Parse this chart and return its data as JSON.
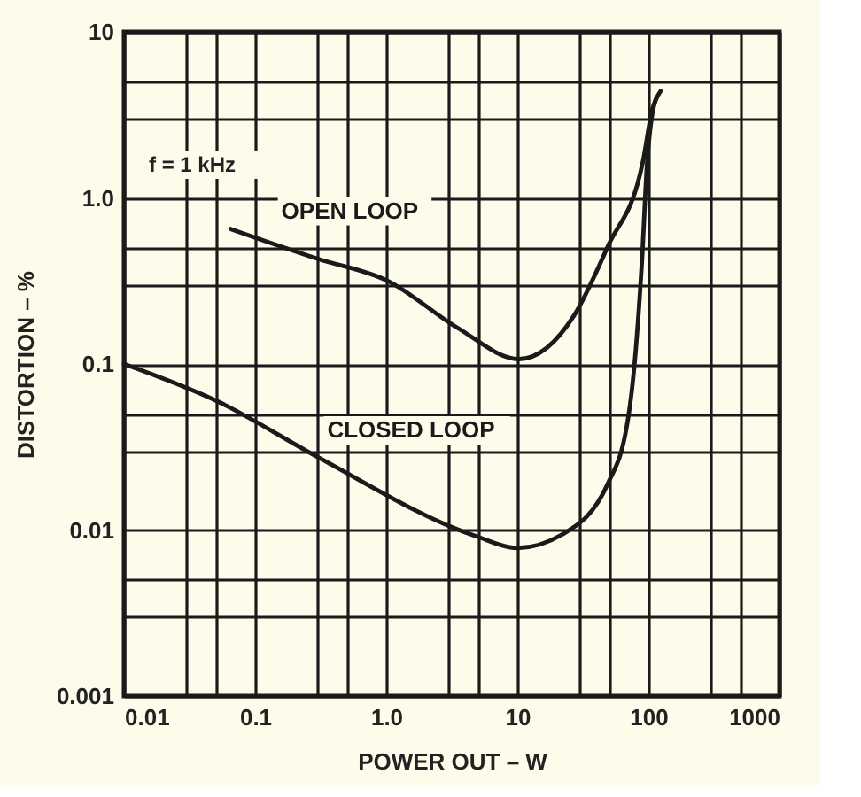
{
  "chart_data": {
    "type": "line",
    "xlabel": "POWER OUT – W",
    "ylabel": "DISTORTION – %",
    "log": "xy",
    "xlim": [
      0.01,
      1000
    ],
    "ylim": [
      0.001,
      10
    ],
    "xticks": [
      0.01,
      {
        "value": 0.03,
        "label": null
      },
      {
        "value": 0.05,
        "label": null
      },
      0.1,
      {
        "value": 0.3,
        "label": null
      },
      {
        "value": 0.5,
        "label": null
      },
      {
        "value": 1,
        "label": "1.0"
      },
      {
        "value": 3,
        "label": null
      },
      {
        "value": 5,
        "label": null
      },
      10,
      {
        "value": 30,
        "label": null
      },
      {
        "value": 50,
        "label": null
      },
      100,
      {
        "value": 300,
        "label": null
      },
      {
        "value": 500,
        "label": null
      },
      1000
    ],
    "yticks": [
      0.001,
      {
        "value": 0.003,
        "label": null
      },
      {
        "value": 0.005,
        "label": null
      },
      0.01,
      {
        "value": 0.03,
        "label": null
      },
      {
        "value": 0.05,
        "label": null
      },
      0.1,
      {
        "value": 0.3,
        "label": null
      },
      {
        "value": 0.5,
        "label": null
      },
      {
        "value": 1,
        "label": "1.0"
      },
      {
        "value": 3,
        "label": null
      },
      {
        "value": 5,
        "label": null
      },
      10
    ],
    "grid": true,
    "marker": "none",
    "line_style": "solid",
    "annotations": [
      "f = 1 kHz"
    ],
    "series": [
      {
        "name": "OPEN LOOP",
        "color": "#1a1a1a",
        "x": [
          0.065,
          0.3,
          1.03,
          3.5,
          10.3,
          27,
          49,
          91,
          107,
          124
        ],
        "values": [
          0.65,
          0.43,
          0.316,
          0.165,
          0.107,
          0.195,
          0.51,
          1.67,
          3.4,
          4.4
        ]
      },
      {
        "name": "CLOSED LOOP",
        "color": "#1a1a1a",
        "x": [
          0.01,
          0.053,
          0.3,
          4.8,
          10,
          22,
          49,
          70,
          80,
          89,
          98,
          107,
          115
        ],
        "values": [
          0.1,
          0.059,
          0.0275,
          0.0092,
          0.0078,
          0.0094,
          0.019,
          0.047,
          0.12,
          0.4,
          1.67,
          3.2,
          4
        ]
      }
    ]
  }
}
